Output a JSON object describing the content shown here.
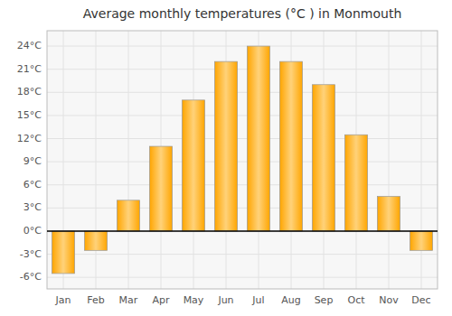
{
  "chart_data": {
    "type": "bar",
    "title": "Average monthly temperatures (°C ) in Monmouth",
    "categories": [
      "Jan",
      "Feb",
      "Mar",
      "Apr",
      "May",
      "Jun",
      "Jul",
      "Aug",
      "Sep",
      "Oct",
      "Nov",
      "Dec"
    ],
    "values": [
      -5.5,
      -2.5,
      4.0,
      11.0,
      17.0,
      22.0,
      24.0,
      22.0,
      19.0,
      12.5,
      4.5,
      -2.5
    ],
    "color": "#FFA500",
    "ylim": [
      -7.5,
      26
    ],
    "yticks": [
      {
        "value": -6,
        "label": "-6°C"
      },
      {
        "value": -3,
        "label": "-3°C"
      },
      {
        "value": 0,
        "label": "0°C"
      },
      {
        "value": 3,
        "label": "3°C"
      },
      {
        "value": 6,
        "label": "6°C"
      },
      {
        "value": 9,
        "label": "9°C"
      },
      {
        "value": 12,
        "label": "12°C"
      },
      {
        "value": 15,
        "label": "15°C"
      },
      {
        "value": 18,
        "label": "18°C"
      },
      {
        "value": 21,
        "label": "21°C"
      },
      {
        "value": 24,
        "label": "24°C"
      }
    ],
    "grid": true
  }
}
